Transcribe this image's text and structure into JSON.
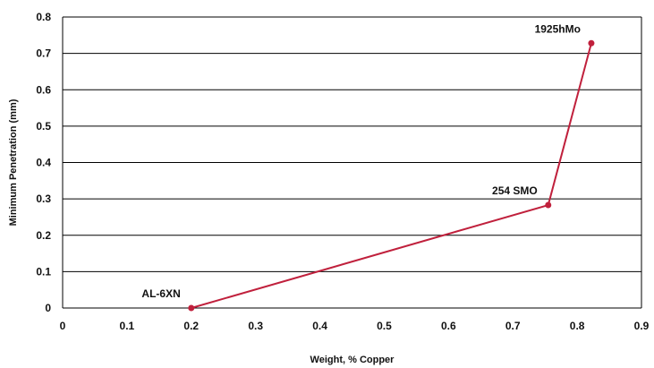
{
  "chart_data": {
    "type": "line",
    "xlabel": "Weight, % Copper",
    "ylabel": "Minimum Penetration (mm)",
    "xlim": [
      0,
      0.9
    ],
    "ylim": [
      0,
      0.8
    ],
    "x_ticks": [
      "0",
      "0.1",
      "0.2",
      "0.3",
      "0.4",
      "0.5",
      "0.6",
      "0.7",
      "0.8",
      "0.9"
    ],
    "y_ticks": [
      "0",
      "0.1",
      "0.2",
      "0.3",
      "0.4",
      "0.5",
      "0.6",
      "0.7",
      "0.8"
    ],
    "grid": "horizontal",
    "series": [
      {
        "color": "#c0203c",
        "points": [
          {
            "label": "AL-6XN",
            "x": 0.2,
            "y": 0.0
          },
          {
            "label": "254 SMO",
            "x": 0.755,
            "y": 0.283
          },
          {
            "label": "1925hMo",
            "x": 0.822,
            "y": 0.728
          }
        ]
      }
    ]
  }
}
